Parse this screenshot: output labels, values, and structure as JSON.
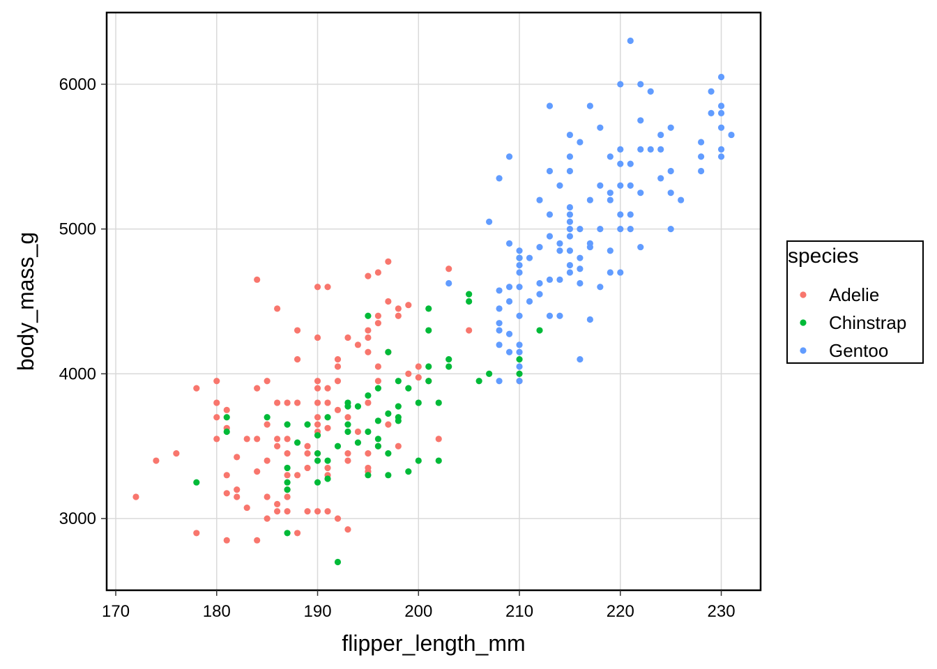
{
  "chart_data": {
    "type": "scatter",
    "title": "",
    "xlabel": "flipper_length_mm",
    "ylabel": "body_mass_g",
    "xlim": [
      169.1,
      233.9
    ],
    "ylim": [
      2505,
      6495
    ],
    "x_ticks": [
      170,
      180,
      190,
      200,
      210,
      220,
      230
    ],
    "y_ticks": [
      3000,
      4000,
      5000,
      6000
    ],
    "grid": true,
    "legend": {
      "title": "species",
      "position": "right"
    },
    "series": [
      {
        "name": "Adelie",
        "color": "#F8766D",
        "points": [
          [
            172,
            3150
          ],
          [
            174,
            3400
          ],
          [
            176,
            3450
          ],
          [
            178,
            3900
          ],
          [
            178,
            2900
          ],
          [
            180,
            3950
          ],
          [
            180,
            3800
          ],
          [
            180,
            3700
          ],
          [
            180,
            3550
          ],
          [
            181,
            3750
          ],
          [
            181,
            3625
          ],
          [
            181,
            3300
          ],
          [
            181,
            3175
          ],
          [
            181,
            2850
          ],
          [
            182,
            3425
          ],
          [
            182,
            3200
          ],
          [
            182,
            3150
          ],
          [
            183,
            3550
          ],
          [
            183,
            3075
          ],
          [
            184,
            4650
          ],
          [
            184,
            3900
          ],
          [
            184,
            3550
          ],
          [
            184,
            3325
          ],
          [
            184,
            2850
          ],
          [
            185,
            3950
          ],
          [
            185,
            3650
          ],
          [
            185,
            3400
          ],
          [
            185,
            3150
          ],
          [
            185,
            3000
          ],
          [
            186,
            4450
          ],
          [
            186,
            3800
          ],
          [
            186,
            3550
          ],
          [
            186,
            3500
          ],
          [
            186,
            3100
          ],
          [
            186,
            3050
          ],
          [
            187,
            3800
          ],
          [
            187,
            3550
          ],
          [
            187,
            3450
          ],
          [
            187,
            3300
          ],
          [
            187,
            3200
          ],
          [
            187,
            3150
          ],
          [
            187,
            3050
          ],
          [
            188,
            4300
          ],
          [
            188,
            4100
          ],
          [
            188,
            3800
          ],
          [
            188,
            3300
          ],
          [
            188,
            2900
          ],
          [
            189,
            3500
          ],
          [
            189,
            3450
          ],
          [
            189,
            3350
          ],
          [
            189,
            3050
          ],
          [
            190,
            4600
          ],
          [
            190,
            4250
          ],
          [
            190,
            3950
          ],
          [
            190,
            3900
          ],
          [
            190,
            3800
          ],
          [
            190,
            3700
          ],
          [
            190,
            3650
          ],
          [
            190,
            3600
          ],
          [
            190,
            3450
          ],
          [
            190,
            3050
          ],
          [
            191,
            4600
          ],
          [
            191,
            3900
          ],
          [
            191,
            3800
          ],
          [
            191,
            3625
          ],
          [
            191,
            3350
          ],
          [
            191,
            3300
          ],
          [
            191,
            3050
          ],
          [
            192,
            4100
          ],
          [
            192,
            4050
          ],
          [
            192,
            3950
          ],
          [
            192,
            3750
          ],
          [
            192,
            3000
          ],
          [
            193,
            4250
          ],
          [
            193,
            3700
          ],
          [
            193,
            3450
          ],
          [
            193,
            3400
          ],
          [
            193,
            2925
          ],
          [
            194,
            4200
          ],
          [
            194,
            3600
          ],
          [
            195,
            4675
          ],
          [
            195,
            4300
          ],
          [
            195,
            4250
          ],
          [
            195,
            4150
          ],
          [
            195,
            3800
          ],
          [
            195,
            3450
          ],
          [
            195,
            3350
          ],
          [
            195,
            3325
          ],
          [
            196,
            4700
          ],
          [
            196,
            4400
          ],
          [
            196,
            4350
          ],
          [
            196,
            4050
          ],
          [
            196,
            3950
          ],
          [
            196,
            3500
          ],
          [
            197,
            4775
          ],
          [
            197,
            4500
          ],
          [
            197,
            4150
          ],
          [
            197,
            3650
          ],
          [
            198,
            4450
          ],
          [
            198,
            4400
          ],
          [
            198,
            3500
          ],
          [
            199,
            4475
          ],
          [
            199,
            4000
          ],
          [
            200,
            4050
          ],
          [
            200,
            3975
          ],
          [
            201,
            3950
          ],
          [
            202,
            3550
          ],
          [
            203,
            4725
          ],
          [
            205,
            4300
          ],
          [
            210,
            3950
          ]
        ]
      },
      {
        "name": "Chinstrap",
        "color": "#00BA38",
        "points": [
          [
            178,
            3250
          ],
          [
            181,
            3700
          ],
          [
            181,
            3600
          ],
          [
            185,
            3700
          ],
          [
            187,
            3650
          ],
          [
            187,
            3350
          ],
          [
            187,
            3250
          ],
          [
            187,
            3200
          ],
          [
            187,
            2900
          ],
          [
            188,
            3525
          ],
          [
            189,
            3650
          ],
          [
            190,
            3575
          ],
          [
            190,
            3450
          ],
          [
            190,
            3400
          ],
          [
            190,
            3250
          ],
          [
            191,
            3700
          ],
          [
            191,
            3400
          ],
          [
            191,
            3275
          ],
          [
            192,
            3500
          ],
          [
            192,
            2700
          ],
          [
            193,
            3800
          ],
          [
            193,
            3775
          ],
          [
            193,
            3650
          ],
          [
            193,
            3600
          ],
          [
            194,
            3775
          ],
          [
            194,
            3525
          ],
          [
            195,
            4400
          ],
          [
            195,
            3850
          ],
          [
            195,
            3300
          ],
          [
            195,
            3600
          ],
          [
            196,
            3900
          ],
          [
            196,
            3675
          ],
          [
            196,
            3550
          ],
          [
            196,
            3500
          ],
          [
            197,
            4150
          ],
          [
            197,
            3725
          ],
          [
            197,
            3450
          ],
          [
            197,
            3300
          ],
          [
            198,
            3950
          ],
          [
            198,
            3775
          ],
          [
            198,
            3700
          ],
          [
            198,
            3675
          ],
          [
            199,
            3900
          ],
          [
            199,
            3325
          ],
          [
            200,
            3800
          ],
          [
            200,
            3400
          ],
          [
            201,
            4450
          ],
          [
            201,
            4300
          ],
          [
            201,
            4050
          ],
          [
            201,
            3950
          ],
          [
            202,
            3800
          ],
          [
            202,
            3400
          ],
          [
            203,
            4100
          ],
          [
            203,
            4050
          ],
          [
            205,
            4550
          ],
          [
            205,
            4500
          ],
          [
            206,
            3950
          ],
          [
            207,
            4000
          ],
          [
            210,
            4800
          ],
          [
            210,
            4100
          ],
          [
            210,
            4000
          ],
          [
            212,
            4300
          ]
        ]
      },
      {
        "name": "Gentoo",
        "color": "#619CFF",
        "points": [
          [
            203,
            4625
          ],
          [
            207,
            5050
          ],
          [
            208,
            4575
          ],
          [
            208,
            4450
          ],
          [
            208,
            4350
          ],
          [
            208,
            4300
          ],
          [
            208,
            4200
          ],
          [
            208,
            3950
          ],
          [
            209,
            5500
          ],
          [
            209,
            4900
          ],
          [
            209,
            4600
          ],
          [
            209,
            4500
          ],
          [
            209,
            4275
          ],
          [
            209,
            4150
          ],
          [
            210,
            4850
          ],
          [
            210,
            4800
          ],
          [
            210,
            4750
          ],
          [
            210,
            4700
          ],
          [
            210,
            4600
          ],
          [
            210,
            4400
          ],
          [
            210,
            4200
          ],
          [
            210,
            4150
          ],
          [
            210,
            4050
          ],
          [
            210,
            3950
          ],
          [
            208,
            5350
          ],
          [
            211,
            4800
          ],
          [
            211,
            4500
          ],
          [
            212,
            5200
          ],
          [
            212,
            4875
          ],
          [
            212,
            4625
          ],
          [
            212,
            4550
          ],
          [
            213,
            5850
          ],
          [
            213,
            5400
          ],
          [
            213,
            5100
          ],
          [
            213,
            4950
          ],
          [
            213,
            4650
          ],
          [
            213,
            4400
          ],
          [
            214,
            5300
          ],
          [
            214,
            4900
          ],
          [
            214,
            4850
          ],
          [
            214,
            4650
          ],
          [
            214,
            4400
          ],
          [
            215,
            5650
          ],
          [
            215,
            5500
          ],
          [
            215,
            5400
          ],
          [
            215,
            5150
          ],
          [
            215,
            5100
          ],
          [
            215,
            5050
          ],
          [
            215,
            5000
          ],
          [
            215,
            4950
          ],
          [
            215,
            4850
          ],
          [
            215,
            4750
          ],
          [
            215,
            4700
          ],
          [
            216,
            5600
          ],
          [
            216,
            5000
          ],
          [
            216,
            4800
          ],
          [
            216,
            4725
          ],
          [
            216,
            4625
          ],
          [
            216,
            4100
          ],
          [
            217,
            5850
          ],
          [
            217,
            5200
          ],
          [
            217,
            4900
          ],
          [
            217,
            4875
          ],
          [
            217,
            4375
          ],
          [
            218,
            5700
          ],
          [
            218,
            5300
          ],
          [
            218,
            5000
          ],
          [
            218,
            4600
          ],
          [
            219,
            5500
          ],
          [
            219,
            5250
          ],
          [
            219,
            5200
          ],
          [
            219,
            4850
          ],
          [
            219,
            4700
          ],
          [
            220,
            6000
          ],
          [
            220,
            5550
          ],
          [
            220,
            5450
          ],
          [
            220,
            5300
          ],
          [
            220,
            5100
          ],
          [
            220,
            5000
          ],
          [
            220,
            4700
          ],
          [
            221,
            6300
          ],
          [
            221,
            5450
          ],
          [
            221,
            5300
          ],
          [
            221,
            5100
          ],
          [
            221,
            5000
          ],
          [
            222,
            6000
          ],
          [
            222,
            5750
          ],
          [
            222,
            5550
          ],
          [
            222,
            5250
          ],
          [
            222,
            4875
          ],
          [
            223,
            5950
          ],
          [
            223,
            5550
          ],
          [
            224,
            5650
          ],
          [
            224,
            5550
          ],
          [
            224,
            5350
          ],
          [
            225,
            5700
          ],
          [
            225,
            5400
          ],
          [
            225,
            5250
          ],
          [
            225,
            5000
          ],
          [
            226,
            5200
          ],
          [
            228,
            5600
          ],
          [
            228,
            5500
          ],
          [
            228,
            5400
          ],
          [
            229,
            5950
          ],
          [
            229,
            5800
          ],
          [
            230,
            6050
          ],
          [
            230,
            5850
          ],
          [
            230,
            5800
          ],
          [
            230,
            5700
          ],
          [
            230,
            5550
          ],
          [
            230,
            5500
          ],
          [
            231,
            5650
          ]
        ]
      }
    ]
  }
}
